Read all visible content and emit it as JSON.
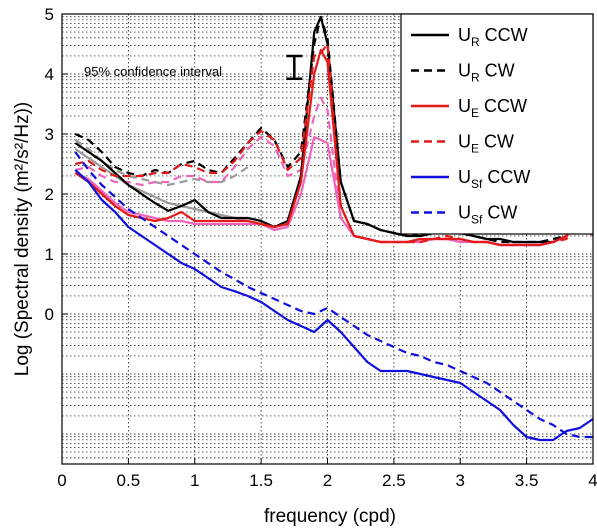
{
  "chart_data": {
    "type": "line",
    "xlabel": "frequency (cpd)",
    "ylabel": "Log (Spectral density (m²/s²/Hz))",
    "xlim": [
      0,
      4
    ],
    "ylim": [
      -2.5,
      5
    ],
    "y_scale": "log10 values, minor grid at log10(k) offsets",
    "grid": true,
    "legend_position": "top-right",
    "x_ticks": [
      "0",
      "0.5",
      "1",
      "1.5",
      "2",
      "2.5",
      "3",
      "3.5",
      "4"
    ],
    "y_ticks": [
      "0",
      "1",
      "2",
      "3",
      "4",
      "5"
    ],
    "annotation": {
      "text": "95% confidence interval",
      "x": 1.75,
      "y_low": 3.92,
      "y_high": 4.3
    },
    "legend": [
      {
        "main": "U",
        "sub": "R",
        "suffix": " CCW",
        "color": "#000000",
        "dash": "solid"
      },
      {
        "main": "U",
        "sub": "R",
        "suffix": " CW",
        "color": "#000000",
        "dash": "dashed"
      },
      {
        "main": "U",
        "sub": "E",
        "suffix": " CCW",
        "color": "#e41a1a",
        "dash": "solid"
      },
      {
        "main": "U",
        "sub": "E",
        "suffix": " CW",
        "color": "#e41a1a",
        "dash": "dashed"
      },
      {
        "main": "U",
        "sub": "Sf",
        "suffix": " CCW",
        "color": "#1010dd",
        "dash": "solid"
      },
      {
        "main": "U",
        "sub": "Sf",
        "suffix": " CW",
        "color": "#1010dd",
        "dash": "dashed"
      }
    ],
    "x": [
      0.1,
      0.2,
      0.3,
      0.4,
      0.5,
      0.6,
      0.7,
      0.8,
      0.9,
      1.0,
      1.1,
      1.2,
      1.3,
      1.4,
      1.5,
      1.6,
      1.7,
      1.8,
      1.9,
      1.95,
      2.0,
      2.1,
      2.2,
      2.3,
      2.4,
      2.5,
      2.6,
      2.7,
      2.8,
      2.9,
      3.0,
      3.1,
      3.2,
      3.3,
      3.4,
      3.5,
      3.6,
      3.7,
      3.8,
      3.9,
      4.0
    ],
    "series": [
      {
        "name": "U_R CCW",
        "color": "#000000",
        "dash": "solid",
        "values": [
          2.85,
          2.7,
          2.55,
          2.35,
          2.15,
          2.0,
          1.85,
          1.72,
          1.8,
          1.9,
          1.7,
          1.6,
          1.6,
          1.6,
          1.55,
          1.45,
          1.55,
          2.3,
          4.7,
          4.95,
          4.5,
          2.2,
          1.55,
          1.5,
          1.4,
          1.35,
          1.3,
          1.3,
          1.35,
          1.38,
          1.35,
          1.3,
          1.25,
          1.25,
          1.2,
          1.2,
          1.2,
          1.2,
          1.3,
          1.75,
          1.6
        ]
      },
      {
        "name": "U_R CW",
        "color": "#000000",
        "dash": "dashed",
        "values": [
          3.0,
          2.9,
          2.7,
          2.45,
          2.35,
          2.3,
          2.4,
          2.35,
          2.5,
          2.55,
          2.4,
          2.35,
          2.6,
          2.85,
          3.1,
          2.9,
          2.45,
          2.7,
          4.5,
          4.95,
          4.6,
          2.2,
          1.55,
          1.5,
          1.4,
          1.35,
          1.3,
          1.35,
          1.35,
          1.4,
          1.4,
          1.3,
          1.25,
          1.2,
          1.2,
          1.2,
          1.2,
          1.25,
          1.3,
          1.7,
          1.65
        ]
      },
      {
        "name": "U_E CCW",
        "color": "#e41a1a",
        "dash": "solid",
        "values": [
          2.35,
          2.2,
          2.0,
          1.8,
          1.65,
          1.6,
          1.55,
          1.6,
          1.7,
          1.55,
          1.55,
          1.55,
          1.55,
          1.55,
          1.5,
          1.45,
          1.5,
          2.2,
          4.0,
          4.4,
          4.2,
          1.8,
          1.3,
          1.25,
          1.2,
          1.2,
          1.2,
          1.25,
          1.25,
          1.25,
          1.25,
          1.2,
          1.2,
          1.15,
          1.15,
          1.15,
          1.15,
          1.2,
          1.3,
          1.7,
          1.6
        ]
      },
      {
        "name": "U_E CW",
        "color": "#e41a1a",
        "dash": "dashed",
        "values": [
          2.5,
          2.55,
          2.4,
          2.3,
          2.3,
          2.3,
          2.35,
          2.35,
          2.5,
          2.45,
          2.35,
          2.35,
          2.55,
          2.85,
          3.05,
          2.9,
          2.4,
          2.6,
          4.3,
          4.35,
          4.5,
          1.8,
          1.3,
          1.25,
          1.2,
          1.2,
          1.2,
          1.2,
          1.25,
          1.3,
          1.25,
          1.2,
          1.2,
          1.15,
          1.15,
          1.15,
          1.15,
          1.2,
          1.25,
          1.7,
          1.6
        ]
      },
      {
        "name": "U_Sf CCW",
        "color": "#1010dd",
        "dash": "solid",
        "values": [
          2.4,
          2.2,
          1.9,
          1.7,
          1.45,
          1.3,
          1.15,
          1.0,
          0.85,
          0.75,
          0.6,
          0.45,
          0.38,
          0.3,
          0.2,
          0.05,
          -0.1,
          -0.2,
          -0.3,
          -0.2,
          -0.1,
          -0.3,
          -0.55,
          -0.8,
          -0.95,
          -0.95,
          -0.95,
          -1.0,
          -1.05,
          -1.1,
          -1.15,
          -1.3,
          -1.45,
          -1.6,
          -1.85,
          -2.05,
          -2.1,
          -2.1,
          -1.95,
          -1.9,
          -1.75
        ]
      },
      {
        "name": "U_Sf CW",
        "color": "#1010dd",
        "dash": "dashed",
        "values": [
          2.7,
          2.4,
          2.15,
          1.95,
          1.75,
          1.6,
          1.45,
          1.3,
          1.15,
          1.0,
          0.85,
          0.7,
          0.58,
          0.45,
          0.35,
          0.25,
          0.15,
          0.05,
          0.0,
          0.05,
          0.1,
          -0.05,
          -0.2,
          -0.35,
          -0.45,
          -0.55,
          -0.65,
          -0.7,
          -0.8,
          -0.85,
          -0.95,
          -1.05,
          -1.15,
          -1.3,
          -1.45,
          -1.6,
          -1.75,
          -1.85,
          -2.0,
          -2.05,
          -2.05
        ]
      }
    ],
    "extra_traces": [
      {
        "color": "#9a9a9a",
        "dash": "solid",
        "values": [
          2.75,
          2.6,
          2.45,
          2.3,
          2.15,
          2.05,
          1.95,
          1.85,
          1.8,
          1.75,
          1.7,
          1.65,
          1.6,
          1.55
        ]
      },
      {
        "color": "#9a9a9a",
        "dash": "dashed",
        "values": [
          2.9,
          2.75,
          2.55,
          2.4,
          2.3,
          2.25,
          2.2,
          2.15,
          2.2,
          2.25,
          2.2,
          2.2,
          2.3,
          2.45
        ]
      },
      {
        "color": "#ee66bb",
        "dash": "solid",
        "values": [
          2.35,
          2.25,
          2.05,
          1.85,
          1.7,
          1.65,
          1.6,
          1.55,
          1.55,
          1.5,
          1.5,
          1.5,
          1.5,
          1.5,
          1.5,
          1.4,
          1.45,
          2.0,
          2.95,
          2.9,
          2.85,
          1.6,
          1.3,
          1.25,
          1.2,
          1.2,
          1.2,
          1.2,
          1.25,
          1.25,
          1.2,
          1.2,
          1.2,
          1.15,
          1.15,
          1.15,
          1.15,
          1.2,
          1.3,
          1.5,
          1.3
        ]
      },
      {
        "color": "#ee66bb",
        "dash": "dashed",
        "values": [
          2.4,
          2.45,
          2.3,
          2.2,
          2.2,
          2.15,
          2.2,
          2.2,
          2.3,
          2.3,
          2.2,
          2.2,
          2.45,
          2.75,
          2.95,
          2.8,
          2.3,
          2.4,
          3.3,
          3.6,
          3.4,
          1.6,
          1.3,
          1.25,
          1.2,
          1.2,
          1.2,
          1.2,
          1.25,
          1.25,
          1.2,
          1.2,
          1.2,
          1.15,
          1.15,
          1.15,
          1.15,
          1.2,
          1.3,
          1.5,
          1.3
        ]
      }
    ]
  }
}
